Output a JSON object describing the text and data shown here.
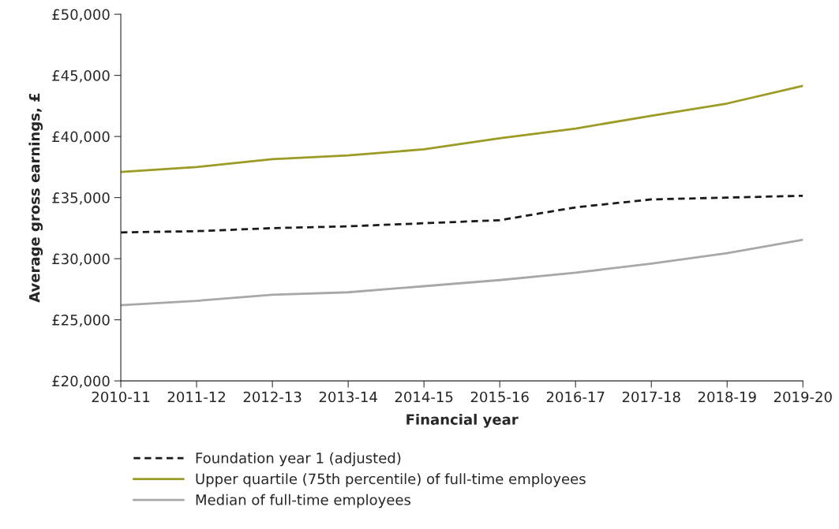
{
  "chart_data": {
    "type": "line",
    "xlabel": "Financial year",
    "ylabel": "Average gross earnings, £",
    "categories": [
      "2010-11",
      "2011-12",
      "2012-13",
      "2013-14",
      "2014-15",
      "2015-16",
      "2016-17",
      "2017-18",
      "2018-19",
      "2019-20"
    ],
    "series": [
      {
        "name": "Foundation year 1 (adjusted)",
        "color": "#1a1a1a",
        "line_style": "dashed",
        "values": [
          32150,
          32250,
          32500,
          32650,
          32900,
          33150,
          34200,
          34850,
          35000,
          35150
        ]
      },
      {
        "name": "Upper quartile (75th percentile) of full-time employees",
        "color": "#9b9b25",
        "line_style": "solid",
        "values": [
          37100,
          37500,
          38150,
          38450,
          38950,
          39850,
          40650,
          41700,
          42700,
          44150
        ]
      },
      {
        "name": "Median of full-time employees",
        "color": "#a8a8a8",
        "line_style": "solid",
        "values": [
          26200,
          26550,
          27050,
          27250,
          27750,
          28250,
          28850,
          29600,
          30450,
          31550
        ]
      }
    ],
    "ylim": [
      20000,
      50000
    ],
    "yticks": [
      {
        "value": 20000,
        "label": "£20,000"
      },
      {
        "value": 25000,
        "label": "£25,000"
      },
      {
        "value": 30000,
        "label": "£30,000"
      },
      {
        "value": 35000,
        "label": "£35,000"
      },
      {
        "value": 40000,
        "label": "£40,000"
      },
      {
        "value": 45000,
        "label": "£45,000"
      },
      {
        "value": 50000,
        "label": "£50,000"
      }
    ],
    "grid": false,
    "legend": "bottom left",
    "marker": "none"
  }
}
